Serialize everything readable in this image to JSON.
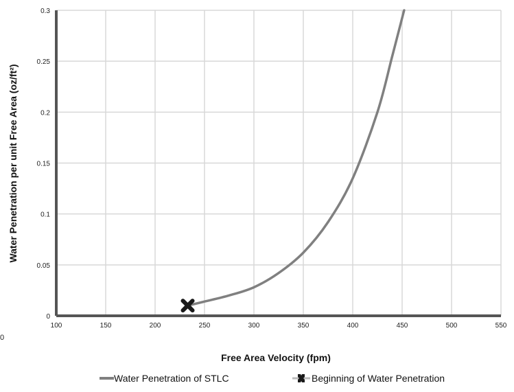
{
  "chart_data": {
    "type": "line",
    "title": "",
    "xlabel": "Free Area Velocity (fpm)",
    "ylabel": "Water Penetration per unit Free Area (oz/ft²)",
    "xlim": [
      100,
      550
    ],
    "ylim": [
      0,
      0.3
    ],
    "x_ticks": [
      100,
      150,
      200,
      250,
      300,
      350,
      400,
      450,
      500,
      550
    ],
    "y_ticks": [
      0,
      0.05,
      0.1,
      0.15,
      0.2,
      0.25,
      0.3
    ],
    "x_tick_labels": [
      "100",
      "150",
      "200",
      "250",
      "300",
      "350",
      "400",
      "450",
      "500",
      "550"
    ],
    "y_tick_labels": [
      "0",
      "0.05",
      "0.1",
      "0.15",
      "0.2",
      "0.25",
      "0.3"
    ],
    "grid": true,
    "legend_position": "bottom",
    "series": [
      {
        "name": "Water Penetration of STLC",
        "color": "#808080",
        "marker": "none",
        "x": [
          233,
          250,
          275,
          300,
          325,
          350,
          375,
          400,
          425,
          440,
          452
        ],
        "y": [
          0.01,
          0.014,
          0.02,
          0.028,
          0.042,
          0.062,
          0.092,
          0.135,
          0.2,
          0.255,
          0.3
        ]
      },
      {
        "name": "Beginning of Water Penetration",
        "color": "#1a1a1a",
        "marker": "x-cross",
        "x": [
          233
        ],
        "y": [
          0.01
        ]
      }
    ]
  },
  "stray_label": "0"
}
